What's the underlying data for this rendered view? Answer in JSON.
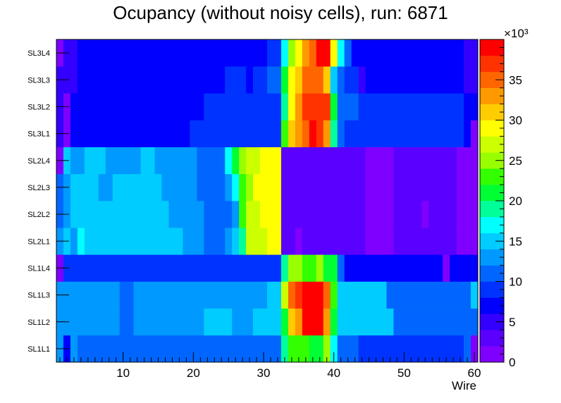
{
  "chart_data": {
    "type": "heatmap",
    "title": "Ocupancy (without noisy cells), run: 6871",
    "xlabel": "Wire",
    "ylabel": "",
    "x_range": [
      0.5,
      60.5
    ],
    "x_ticks": [
      10,
      20,
      30,
      40,
      50,
      60
    ],
    "y_categories": [
      "SL1L1",
      "SL1L2",
      "SL1L3",
      "SL1L4",
      "SL2L1",
      "SL2L2",
      "SL2L3",
      "SL2L4",
      "SL3L1",
      "SL3L2",
      "SL3L3",
      "SL3L4"
    ],
    "z_range": [
      0,
      40000
    ],
    "z_ticks": [
      0,
      5,
      10,
      15,
      20,
      25,
      30,
      35
    ],
    "z_exponent_label": "×10³",
    "palette": [
      "#7f00ff",
      "#5a00ff",
      "#3300ff",
      "#0000ff",
      "#0033ff",
      "#0066ff",
      "#0099ff",
      "#00ccff",
      "#00ffff",
      "#00ff99",
      "#00ff33",
      "#33ff00",
      "#99ff00",
      "#ccff00",
      "#ffff00",
      "#ffcc00",
      "#ff9900",
      "#ff6600",
      "#ff3300",
      "#ff0000"
    ],
    "rows": [
      {
        "layer": "SL1L1",
        "segments": [
          [
            1,
            1,
            6
          ],
          [
            2,
            2,
            3
          ],
          [
            3,
            3,
            6
          ],
          [
            4,
            32,
            5
          ],
          [
            33,
            33,
            9
          ],
          [
            34,
            36,
            11
          ],
          [
            37,
            38,
            10
          ],
          [
            39,
            39,
            12
          ],
          [
            40,
            40,
            8
          ],
          [
            41,
            43,
            5
          ],
          [
            44,
            58,
            4
          ],
          [
            59,
            59,
            5
          ],
          [
            60,
            60,
            0
          ]
        ]
      },
      {
        "layer": "SL1L2",
        "segments": [
          [
            1,
            9,
            6
          ],
          [
            10,
            11,
            5
          ],
          [
            12,
            21,
            6
          ],
          [
            22,
            25,
            7
          ],
          [
            26,
            28,
            6
          ],
          [
            29,
            32,
            7
          ],
          [
            33,
            33,
            10
          ],
          [
            34,
            34,
            15
          ],
          [
            35,
            35,
            16
          ],
          [
            36,
            38,
            19
          ],
          [
            39,
            39,
            16
          ],
          [
            40,
            40,
            10
          ],
          [
            41,
            48,
            7
          ],
          [
            49,
            60,
            5
          ]
        ]
      },
      {
        "layer": "SL1L3",
        "segments": [
          [
            1,
            9,
            6
          ],
          [
            10,
            11,
            5
          ],
          [
            12,
            30,
            6
          ],
          [
            31,
            32,
            7
          ],
          [
            33,
            33,
            13
          ],
          [
            34,
            34,
            17
          ],
          [
            35,
            35,
            18
          ],
          [
            36,
            38,
            19
          ],
          [
            39,
            39,
            17
          ],
          [
            40,
            40,
            11
          ],
          [
            41,
            47,
            7
          ],
          [
            48,
            59,
            5
          ],
          [
            60,
            60,
            7
          ]
        ]
      },
      {
        "layer": "SL1L4",
        "segments": [
          [
            1,
            1,
            0
          ],
          [
            2,
            32,
            4
          ],
          [
            33,
            33,
            9
          ],
          [
            34,
            35,
            12
          ],
          [
            36,
            37,
            11
          ],
          [
            38,
            38,
            12
          ],
          [
            39,
            40,
            10
          ],
          [
            41,
            41,
            5
          ],
          [
            42,
            55,
            3
          ],
          [
            56,
            56,
            0
          ],
          [
            57,
            60,
            3
          ]
        ]
      },
      {
        "layer": "SL2L1",
        "segments": [
          [
            1,
            1,
            6
          ],
          [
            2,
            2,
            7
          ],
          [
            3,
            3,
            6
          ],
          [
            4,
            4,
            8
          ],
          [
            5,
            8,
            7
          ],
          [
            9,
            18,
            7
          ],
          [
            19,
            21,
            6
          ],
          [
            22,
            24,
            5
          ],
          [
            25,
            25,
            6
          ],
          [
            26,
            26,
            7
          ],
          [
            27,
            27,
            9
          ],
          [
            28,
            30,
            13
          ],
          [
            31,
            32,
            14
          ],
          [
            33,
            34,
            1
          ],
          [
            35,
            35,
            0
          ],
          [
            36,
            44,
            1
          ],
          [
            45,
            48,
            0
          ],
          [
            49,
            57,
            1
          ],
          [
            58,
            60,
            0
          ]
        ]
      },
      {
        "layer": "SL2L2",
        "segments": [
          [
            1,
            1,
            5
          ],
          [
            2,
            2,
            6
          ],
          [
            3,
            8,
            7
          ],
          [
            9,
            16,
            7
          ],
          [
            17,
            21,
            6
          ],
          [
            22,
            25,
            5
          ],
          [
            26,
            26,
            6
          ],
          [
            27,
            27,
            11
          ],
          [
            28,
            29,
            13
          ],
          [
            30,
            32,
            14
          ],
          [
            33,
            44,
            1
          ],
          [
            45,
            48,
            0
          ],
          [
            49,
            52,
            1
          ],
          [
            53,
            53,
            0
          ],
          [
            54,
            57,
            1
          ],
          [
            58,
            60,
            0
          ]
        ]
      },
      {
        "layer": "SL2L3",
        "segments": [
          [
            1,
            1,
            5
          ],
          [
            2,
            2,
            6
          ],
          [
            3,
            6,
            7
          ],
          [
            7,
            8,
            6
          ],
          [
            9,
            15,
            7
          ],
          [
            16,
            20,
            6
          ],
          [
            21,
            24,
            5
          ],
          [
            25,
            25,
            6
          ],
          [
            26,
            26,
            8
          ],
          [
            27,
            27,
            11
          ],
          [
            28,
            28,
            12
          ],
          [
            29,
            32,
            14
          ],
          [
            33,
            44,
            1
          ],
          [
            45,
            48,
            0
          ],
          [
            49,
            57,
            1
          ],
          [
            58,
            60,
            0
          ]
        ]
      },
      {
        "layer": "SL2L4",
        "segments": [
          [
            1,
            1,
            0
          ],
          [
            2,
            2,
            7
          ],
          [
            3,
            4,
            6
          ],
          [
            5,
            7,
            7
          ],
          [
            8,
            12,
            6
          ],
          [
            13,
            14,
            7
          ],
          [
            15,
            20,
            6
          ],
          [
            21,
            24,
            5
          ],
          [
            25,
            25,
            8
          ],
          [
            26,
            26,
            10
          ],
          [
            27,
            27,
            12
          ],
          [
            28,
            29,
            13
          ],
          [
            30,
            32,
            14
          ],
          [
            33,
            44,
            1
          ],
          [
            45,
            48,
            0
          ],
          [
            49,
            57,
            1
          ],
          [
            58,
            60,
            0
          ]
        ]
      },
      {
        "layer": "SL3L1",
        "segments": [
          [
            1,
            1,
            2
          ],
          [
            2,
            2,
            0
          ],
          [
            3,
            19,
            3
          ],
          [
            20,
            32,
            4
          ],
          [
            33,
            33,
            11
          ],
          [
            34,
            34,
            15
          ],
          [
            35,
            35,
            16
          ],
          [
            36,
            36,
            17
          ],
          [
            37,
            37,
            19
          ],
          [
            38,
            38,
            18
          ],
          [
            39,
            39,
            16
          ],
          [
            40,
            40,
            9
          ],
          [
            41,
            41,
            5
          ],
          [
            42,
            58,
            4
          ],
          [
            59,
            59,
            3
          ],
          [
            60,
            60,
            0
          ]
        ]
      },
      {
        "layer": "SL3L2",
        "segments": [
          [
            1,
            1,
            2
          ],
          [
            2,
            2,
            0
          ],
          [
            3,
            21,
            3
          ],
          [
            22,
            32,
            4
          ],
          [
            33,
            33,
            9
          ],
          [
            34,
            34,
            14
          ],
          [
            35,
            35,
            16
          ],
          [
            36,
            39,
            18
          ],
          [
            40,
            40,
            10
          ],
          [
            41,
            43,
            5
          ],
          [
            44,
            58,
            4
          ],
          [
            59,
            60,
            3
          ]
        ]
      },
      {
        "layer": "SL3L3",
        "segments": [
          [
            1,
            3,
            2
          ],
          [
            4,
            24,
            3
          ],
          [
            25,
            27,
            4
          ],
          [
            28,
            28,
            3
          ],
          [
            29,
            30,
            4
          ],
          [
            31,
            32,
            5
          ],
          [
            33,
            33,
            10
          ],
          [
            34,
            34,
            14
          ],
          [
            35,
            35,
            15
          ],
          [
            36,
            38,
            17
          ],
          [
            39,
            39,
            15
          ],
          [
            40,
            40,
            7
          ],
          [
            41,
            41,
            5
          ],
          [
            42,
            43,
            4
          ],
          [
            44,
            44,
            2
          ],
          [
            45,
            58,
            3
          ],
          [
            59,
            60,
            2
          ]
        ]
      },
      {
        "layer": "SL3L4",
        "segments": [
          [
            1,
            1,
            0
          ],
          [
            2,
            3,
            2
          ],
          [
            4,
            30,
            3
          ],
          [
            31,
            32,
            4
          ],
          [
            33,
            33,
            8
          ],
          [
            34,
            34,
            12
          ],
          [
            35,
            35,
            14
          ],
          [
            36,
            36,
            16
          ],
          [
            37,
            37,
            17
          ],
          [
            38,
            39,
            19
          ],
          [
            40,
            40,
            14
          ],
          [
            41,
            41,
            8
          ],
          [
            42,
            42,
            5
          ],
          [
            43,
            58,
            3
          ],
          [
            59,
            60,
            2
          ]
        ]
      }
    ]
  }
}
